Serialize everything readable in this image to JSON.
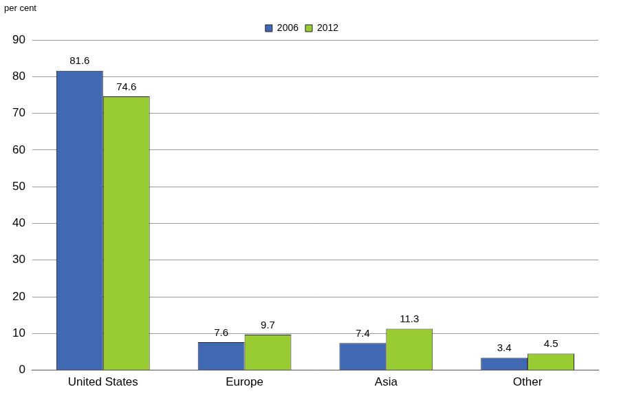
{
  "chart_data": {
    "type": "bar",
    "ylabel": "per cent",
    "categories": [
      "United States",
      "Europe",
      "Asia",
      "Other"
    ],
    "series": [
      {
        "name": "2006",
        "color": "#4169b3",
        "values": [
          81.6,
          7.6,
          7.4,
          3.4
        ]
      },
      {
        "name": "2012",
        "color": "#99cc33",
        "values": [
          74.6,
          9.7,
          11.3,
          4.5
        ]
      }
    ],
    "ylim": [
      0,
      90
    ],
    "yticks": [
      0,
      10,
      20,
      30,
      40,
      50,
      60,
      70,
      80,
      90
    ],
    "grid": true,
    "legend": "top",
    "data_labels": true
  }
}
